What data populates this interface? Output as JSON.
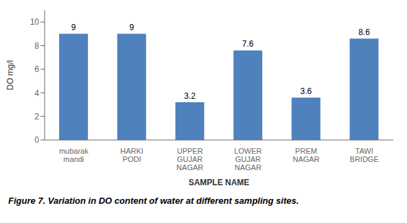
{
  "chart_data": {
    "type": "bar",
    "categories": [
      "mubarak\nmandi",
      "HARKI\nPODI",
      "UPPER\nGUJAR\nNAGAR",
      "LOWER\nGUJAR\nNAGAR",
      "PREM\nNAGAR",
      "TAWI\nBRIDGE"
    ],
    "values": [
      9,
      9,
      3.2,
      7.6,
      3.6,
      8.6
    ],
    "color": "#4F81BD",
    "ylabel": "DO mg/l",
    "xlabel": "SAMPLE NAME",
    "ylim": [
      0,
      11
    ],
    "yticks": [
      0,
      2,
      4,
      6,
      8,
      10
    ],
    "caption": "Figure 7. Variation in DO content of water at different sampling sites.",
    "data_labels": true,
    "grid": false
  }
}
